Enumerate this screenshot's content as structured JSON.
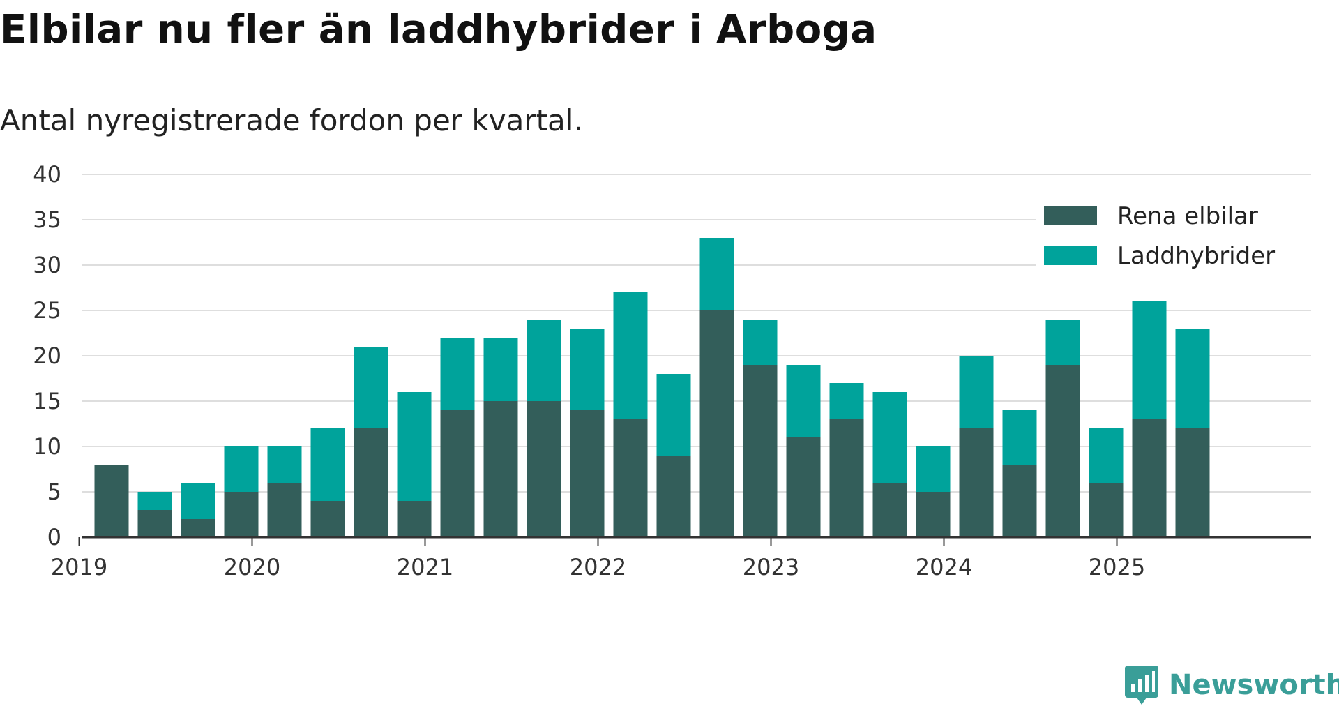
{
  "title": "Elbilar nu fler än laddhybrider i Arboga",
  "subtitle": "Antal nyregistrerade fordon per kvartal.",
  "brand": {
    "name": "Newsworthy",
    "logo_icon": "newsworthy-logo-icon",
    "color": "#3a9e98"
  },
  "chart_data": {
    "type": "bar",
    "stacked": true,
    "categories": [
      "2019 Q1",
      "2019 Q2",
      "2019 Q3",
      "2019 Q4",
      "2020 Q1",
      "2020 Q2",
      "2020 Q3",
      "2020 Q4",
      "2021 Q1",
      "2021 Q2",
      "2021 Q3",
      "2021 Q4",
      "2022 Q1",
      "2022 Q2",
      "2022 Q3",
      "2022 Q4",
      "2023 Q1",
      "2023 Q2",
      "2023 Q3",
      "2023 Q4",
      "2024 Q1",
      "2024 Q2",
      "2024 Q3",
      "2024 Q4",
      "2025 Q1",
      "2025 Q2",
      "2025 Q3"
    ],
    "series": [
      {
        "name": "Rena elbilar",
        "color": "#335e5a",
        "values": [
          8,
          3,
          2,
          5,
          6,
          4,
          12,
          4,
          14,
          15,
          15,
          14,
          13,
          9,
          25,
          19,
          11,
          13,
          6,
          5,
          12,
          8,
          19,
          6,
          13,
          12,
          null
        ]
      },
      {
        "name": "Laddhybrider",
        "color": "#00a39b",
        "values": [
          0,
          2,
          4,
          5,
          4,
          8,
          9,
          12,
          8,
          7,
          9,
          9,
          14,
          9,
          8,
          5,
          8,
          4,
          10,
          5,
          8,
          6,
          5,
          6,
          13,
          11,
          null
        ]
      }
    ],
    "x_ticks": [
      "2019",
      "2020",
      "2021",
      "2022",
      "2023",
      "2024",
      "2025"
    ],
    "y_ticks": [
      0,
      5,
      10,
      15,
      20,
      25,
      30,
      35,
      40
    ],
    "ylim": [
      0,
      40
    ],
    "grid": true,
    "legend_position": "top-right"
  }
}
